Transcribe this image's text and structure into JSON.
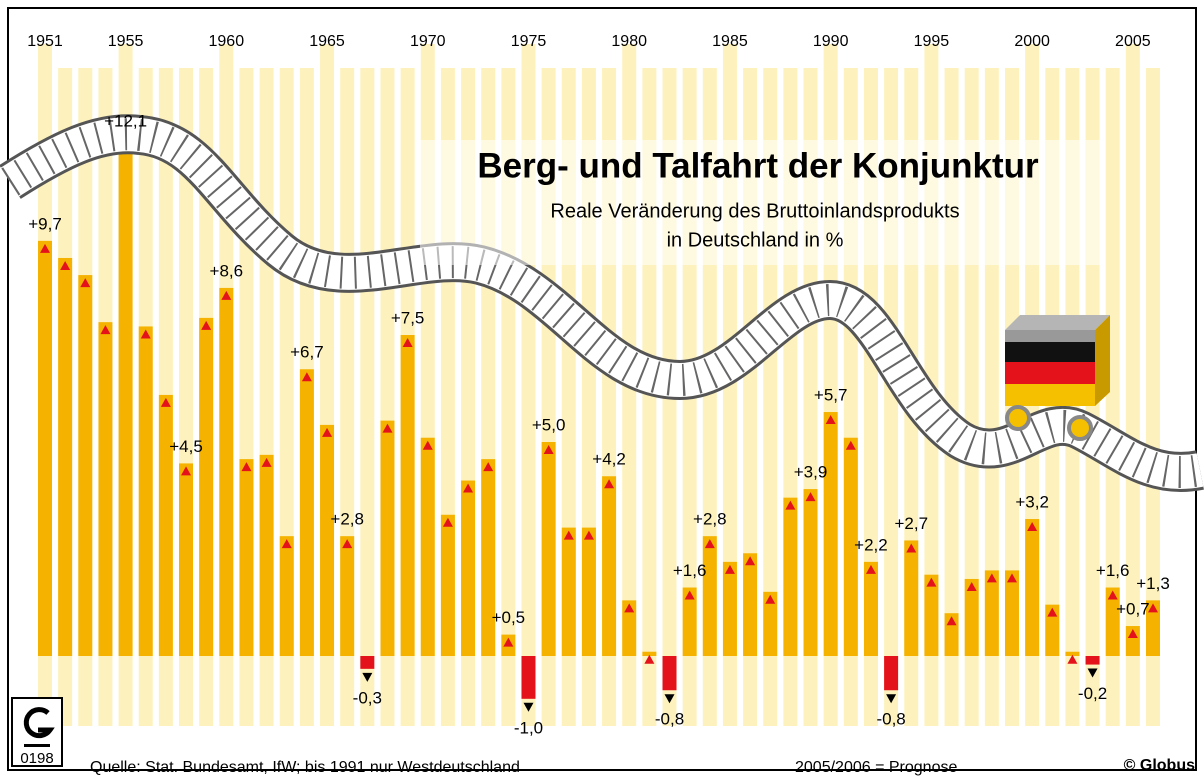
{
  "chart_data": {
    "type": "bar",
    "title": "Berg- und Talfahrt der Konjunktur",
    "subtitle": [
      "Reale Veränderung des Bruttoinlandsprodukts",
      "in Deutschland in %"
    ],
    "x": [
      1951,
      1952,
      1953,
      1954,
      1955,
      1956,
      1957,
      1958,
      1959,
      1960,
      1961,
      1962,
      1963,
      1964,
      1965,
      1966,
      1967,
      1968,
      1969,
      1970,
      1971,
      1972,
      1973,
      1974,
      1975,
      1976,
      1977,
      1978,
      1979,
      1980,
      1981,
      1982,
      1983,
      1984,
      1985,
      1986,
      1987,
      1988,
      1989,
      1990,
      1991,
      1992,
      1993,
      1994,
      1995,
      1996,
      1997,
      1998,
      1999,
      2000,
      2001,
      2002,
      2003,
      2004,
      2005,
      2006
    ],
    "values": [
      9.7,
      9.3,
      8.9,
      7.8,
      12.1,
      7.7,
      6.1,
      4.5,
      7.9,
      8.6,
      4.6,
      4.7,
      2.8,
      6.7,
      5.4,
      2.8,
      -0.3,
      5.5,
      7.5,
      5.1,
      3.3,
      4.1,
      4.6,
      0.5,
      -1.0,
      5.0,
      3.0,
      3.0,
      4.2,
      1.3,
      0.1,
      -0.8,
      1.6,
      2.8,
      2.2,
      2.4,
      1.5,
      3.7,
      3.9,
      5.7,
      5.1,
      2.2,
      -0.8,
      2.7,
      1.9,
      1.0,
      1.8,
      2.0,
      2.0,
      3.2,
      1.2,
      0.1,
      -0.2,
      1.6,
      0.7,
      1.3
    ],
    "value_labels": [
      "+9,7",
      null,
      null,
      null,
      "+12,1",
      null,
      null,
      "+4,5",
      null,
      "+8,6",
      null,
      null,
      null,
      "+6,7",
      null,
      "+2,8",
      "-0,3",
      null,
      "+7,5",
      null,
      null,
      null,
      null,
      "+0,5",
      "-1,0",
      "+5,0",
      null,
      null,
      "+4,2",
      null,
      null,
      "-0,8",
      "+1,6",
      "+2,8",
      null,
      null,
      null,
      null,
      "+3,9",
      "+5,7",
      null,
      "+2,2",
      "-0,8",
      "+2,7",
      null,
      null,
      null,
      null,
      null,
      "+3,2",
      null,
      null,
      "-0,2",
      "+1,6",
      "+0,7",
      "+1,3"
    ],
    "xticks": [
      1951,
      1955,
      1960,
      1965,
      1970,
      1975,
      1980,
      1985,
      1990,
      1995,
      2000,
      2005
    ],
    "xlim": [
      1951,
      2006
    ],
    "ylim": [
      -2,
      13
    ],
    "color": "#f5b300",
    "negative_color": "#e3121b",
    "stripe_color": "#fdf2bd",
    "source": "Quelle: Stat. Bundesamt, IfW; bis 1991 nur Westdeutschland",
    "note": "2005/2006 = Prognose",
    "credit": "© Globus",
    "code": "0198"
  }
}
